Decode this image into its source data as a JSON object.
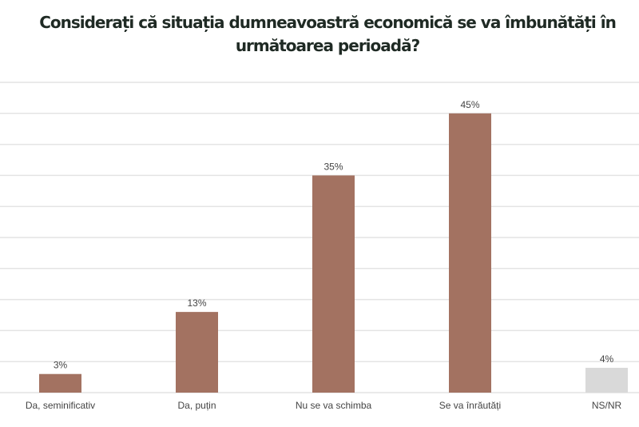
{
  "chart_data": {
    "type": "bar",
    "title": "Considerați că situația dumneavoastră economică se va îmbunătăți în următoarea perioadă?",
    "categories": [
      "Da, seminificativ",
      "Da, puțin",
      "Nu se va schimba",
      "Se va înrăutăți",
      "NS/NR"
    ],
    "values": [
      3,
      13,
      35,
      45,
      4
    ],
    "data_labels": [
      "3%",
      "13%",
      "35%",
      "45%",
      "4%"
    ],
    "colors": [
      "#A37261",
      "#A37261",
      "#A37261",
      "#A37261",
      "#D9D9D9"
    ],
    "ylim": [
      0,
      50
    ],
    "grid": true,
    "grid_step": 5,
    "xlabel": "",
    "ylabel": ""
  }
}
